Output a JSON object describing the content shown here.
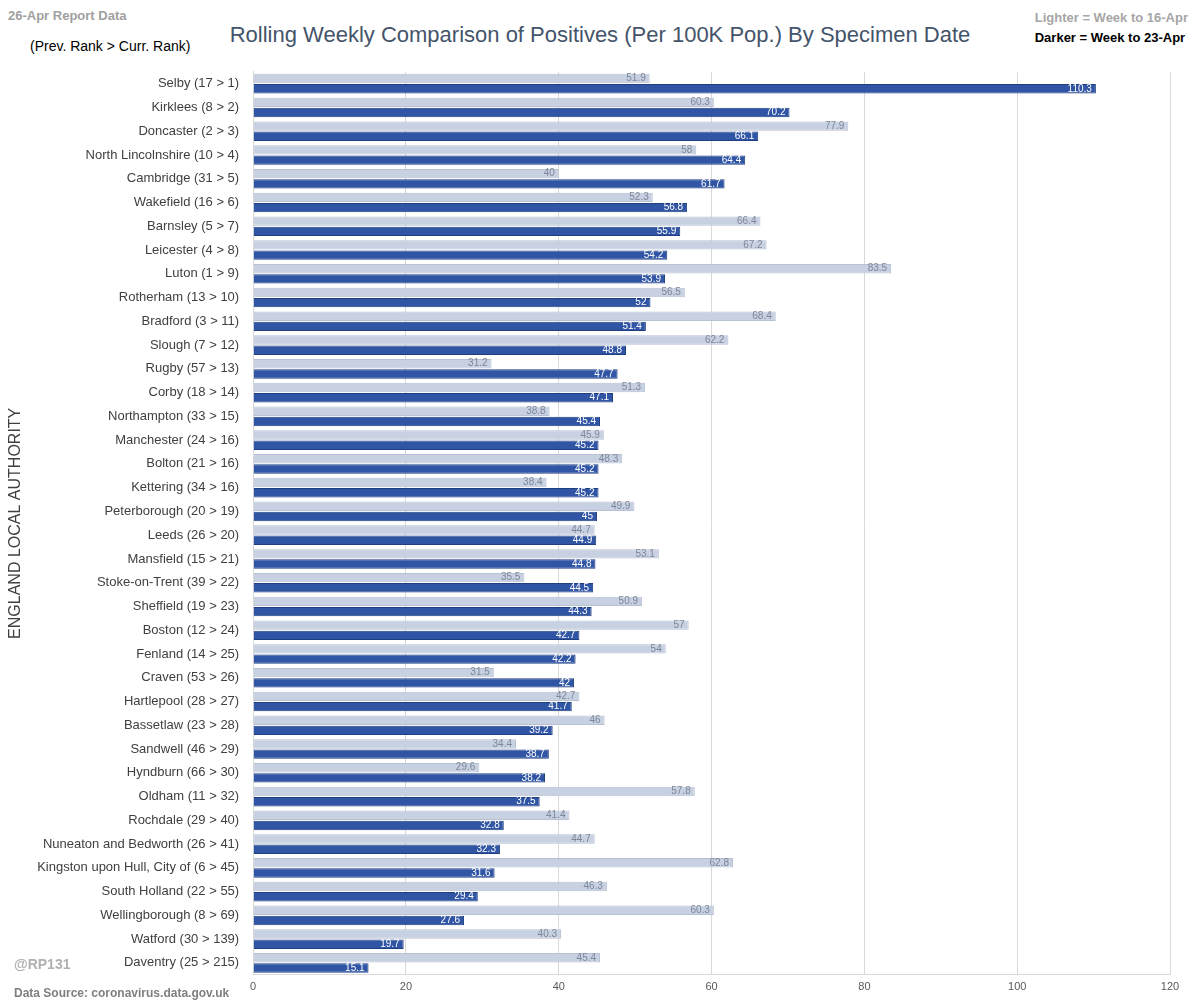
{
  "chart_data": {
    "type": "bar",
    "orientation": "horizontal",
    "title": "Rolling Weekly Comparison of Positives  (Per 100K Pop.) By Specimen Date",
    "subtitle": "(Prev. Rank > Curr. Rank)",
    "annotations": [
      "26-Apr Report Data",
      "@RP131",
      "Data Source: coronavirus.data.gov.uk"
    ],
    "ylabel": "ENGLAND LOCAL AUTHORITY",
    "categories": [
      "Selby (17 > 1)",
      "Kirklees (8 > 2)",
      "Doncaster (2 > 3)",
      "North Lincolnshire (10 > 4)",
      "Cambridge (31 > 5)",
      "Wakefield (16 > 6)",
      "Barnsley (5 > 7)",
      "Leicester (4 > 8)",
      "Luton (1 > 9)",
      "Rotherham (13 > 10)",
      "Bradford (3 > 11)",
      "Slough (7 > 12)",
      "Rugby (57 > 13)",
      "Corby (18 > 14)",
      "Northampton (33 > 15)",
      "Manchester (24 > 16)",
      "Bolton (21 > 16)",
      "Kettering (34 > 16)",
      "Peterborough (20 > 19)",
      "Leeds (26 > 20)",
      "Mansfield (15 > 21)",
      "Stoke-on-Trent (39 > 22)",
      "Sheffield (19 > 23)",
      "Boston (12 > 24)",
      "Fenland (14 > 25)",
      "Craven (53 > 26)",
      "Hartlepool (28 > 27)",
      "Bassetlaw (23 > 28)",
      "Sandwell (46 > 29)",
      "Hyndburn (66 > 30)",
      "Oldham (11 > 32)",
      "Rochdale (29 > 40)",
      "Nuneaton and Bedworth (26 > 41)",
      "Kingston upon Hull, City of (6 > 45)",
      "South Holland (22 > 55)",
      "Wellingborough (8 > 69)",
      "Watford (30 > 139)",
      "Daventry (25 > 215)"
    ],
    "series": [
      {
        "name": "Lighter =  Week to 16-Apr",
        "color": "#c8d1e1",
        "values": [
          51.9,
          60.3,
          77.9,
          58,
          40,
          52.3,
          66.4,
          67.2,
          83.5,
          56.5,
          68.4,
          62.2,
          31.2,
          51.3,
          38.8,
          45.9,
          48.3,
          38.4,
          49.9,
          44.7,
          53.1,
          35.5,
          50.9,
          57,
          54,
          31.5,
          42.7,
          46,
          34.4,
          29.6,
          57.8,
          41.4,
          44.7,
          62.8,
          46.3,
          60.3,
          40.3,
          45.4
        ]
      },
      {
        "name": "Darker =  Week to 23-Apr",
        "color": "#2f55a4",
        "values": [
          110.3,
          70.2,
          66.1,
          64.4,
          61.7,
          56.8,
          55.9,
          54.2,
          53.9,
          52,
          51.4,
          48.8,
          47.7,
          47.1,
          45.4,
          45.2,
          45.2,
          45.2,
          45,
          44.9,
          44.8,
          44.5,
          44.3,
          42.7,
          42.2,
          42,
          41.7,
          39.2,
          38.7,
          38.2,
          37.5,
          32.8,
          32.3,
          31.6,
          29.4,
          27.6,
          19.7,
          15.1
        ]
      }
    ],
    "xlim": [
      0,
      120
    ],
    "xticks": [
      0,
      20,
      40,
      60,
      80,
      100,
      120
    ],
    "grid": true,
    "legend": "top right",
    "data_labels": true
  }
}
